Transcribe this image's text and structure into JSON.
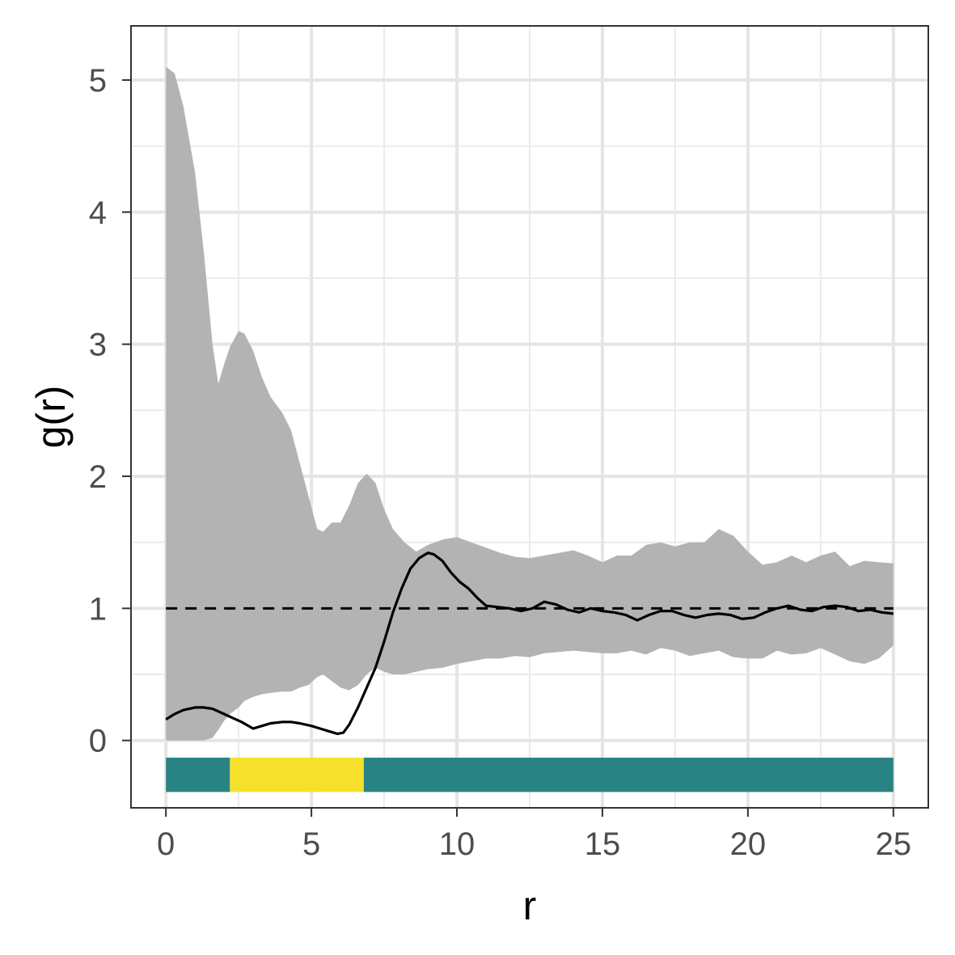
{
  "chart_data": {
    "type": "line",
    "title": "",
    "xlabel": "r",
    "ylabel": "g(r)",
    "xlim": [
      -1.2,
      26.2
    ],
    "ylim": [
      -0.51,
      5.41
    ],
    "x_ticks": [
      0,
      5,
      10,
      15,
      20,
      25
    ],
    "x_tick_labels": [
      "0",
      "5",
      "10",
      "15",
      "20",
      "25"
    ],
    "y_ticks": [
      0,
      1,
      2,
      3,
      4,
      5
    ],
    "y_tick_labels": [
      "0",
      "1",
      "2",
      "3",
      "4",
      "5"
    ],
    "grid": true,
    "legend": "none",
    "reference_line": {
      "y": 1,
      "style": "dashed",
      "color": "#000000"
    },
    "envelope": {
      "color": "#b3b3b3",
      "x": [
        0,
        0.3,
        0.6,
        1.0,
        1.3,
        1.6,
        1.8,
        2.0,
        2.2,
        2.5,
        2.7,
        3.0,
        3.3,
        3.6,
        4.0,
        4.3,
        4.6,
        4.9,
        5.2,
        5.4,
        5.7,
        6.0,
        6.3,
        6.6,
        6.9,
        7.2,
        7.5,
        7.8,
        8.2,
        8.6,
        9.0,
        9.5,
        10.0,
        10.5,
        11.0,
        11.5,
        12.0,
        12.5,
        13.0,
        13.5,
        14.0,
        14.5,
        15.0,
        15.5,
        16.0,
        16.5,
        17.0,
        17.5,
        18.0,
        18.5,
        19.0,
        19.5,
        20.0,
        20.5,
        21.0,
        21.5,
        22.0,
        22.5,
        23.0,
        23.5,
        24.0,
        24.5,
        25.0
      ],
      "upper": [
        5.1,
        5.05,
        4.8,
        4.3,
        3.7,
        3.0,
        2.7,
        2.85,
        2.98,
        3.1,
        3.08,
        2.95,
        2.75,
        2.6,
        2.48,
        2.35,
        2.1,
        1.85,
        1.6,
        1.58,
        1.65,
        1.65,
        1.78,
        1.95,
        2.02,
        1.95,
        1.75,
        1.6,
        1.5,
        1.43,
        1.48,
        1.52,
        1.54,
        1.5,
        1.46,
        1.42,
        1.39,
        1.38,
        1.4,
        1.42,
        1.44,
        1.4,
        1.35,
        1.4,
        1.4,
        1.48,
        1.5,
        1.47,
        1.5,
        1.5,
        1.6,
        1.55,
        1.43,
        1.33,
        1.35,
        1.4,
        1.35,
        1.4,
        1.43,
        1.32,
        1.36,
        1.35,
        1.34
      ],
      "lower": [
        0.0,
        0.0,
        0.0,
        0.0,
        0.0,
        0.02,
        0.08,
        0.15,
        0.2,
        0.25,
        0.3,
        0.33,
        0.35,
        0.36,
        0.37,
        0.37,
        0.4,
        0.42,
        0.48,
        0.5,
        0.45,
        0.4,
        0.38,
        0.42,
        0.5,
        0.55,
        0.52,
        0.5,
        0.5,
        0.52,
        0.54,
        0.55,
        0.58,
        0.6,
        0.62,
        0.62,
        0.64,
        0.63,
        0.66,
        0.67,
        0.68,
        0.67,
        0.66,
        0.66,
        0.68,
        0.65,
        0.7,
        0.68,
        0.64,
        0.66,
        0.68,
        0.63,
        0.62,
        0.62,
        0.68,
        0.65,
        0.66,
        0.7,
        0.65,
        0.6,
        0.58,
        0.62,
        0.72
      ]
    },
    "series": [
      {
        "color": "#000000",
        "x": [
          0,
          0.3,
          0.6,
          1.0,
          1.3,
          1.6,
          2.0,
          2.3,
          2.6,
          3.0,
          3.3,
          3.6,
          4.0,
          4.3,
          4.6,
          5.0,
          5.3,
          5.6,
          5.9,
          6.1,
          6.3,
          6.6,
          6.9,
          7.2,
          7.5,
          7.8,
          8.1,
          8.4,
          8.7,
          9.0,
          9.2,
          9.5,
          9.8,
          10.1,
          10.4,
          10.7,
          11.0,
          11.4,
          11.8,
          12.2,
          12.6,
          13.0,
          13.4,
          13.8,
          14.2,
          14.6,
          15.0,
          15.4,
          15.8,
          16.2,
          16.6,
          17.0,
          17.4,
          17.8,
          18.2,
          18.6,
          19.0,
          19.4,
          19.8,
          20.2,
          20.6,
          21.0,
          21.4,
          21.8,
          22.2,
          22.6,
          23.0,
          23.4,
          23.8,
          24.2,
          24.6,
          25.0
        ],
        "y": [
          0.16,
          0.2,
          0.23,
          0.25,
          0.25,
          0.24,
          0.2,
          0.17,
          0.14,
          0.09,
          0.11,
          0.13,
          0.14,
          0.14,
          0.13,
          0.11,
          0.09,
          0.07,
          0.05,
          0.06,
          0.12,
          0.25,
          0.4,
          0.55,
          0.75,
          0.97,
          1.15,
          1.3,
          1.38,
          1.42,
          1.41,
          1.36,
          1.27,
          1.2,
          1.15,
          1.08,
          1.02,
          1.01,
          1.0,
          0.98,
          1.0,
          1.05,
          1.03,
          0.99,
          0.97,
          1.0,
          0.98,
          0.97,
          0.95,
          0.91,
          0.95,
          0.98,
          0.98,
          0.95,
          0.93,
          0.95,
          0.96,
          0.95,
          0.92,
          0.93,
          0.97,
          1.0,
          1.02,
          0.99,
          0.98,
          1.01,
          1.02,
          1.01,
          0.98,
          0.99,
          0.97,
          0.96
        ]
      }
    ],
    "strip": {
      "y_range": [
        -0.39,
        -0.13
      ],
      "segments": [
        {
          "x0": 0,
          "x1": 2.2,
          "color": "#2a8383"
        },
        {
          "x0": 2.2,
          "x1": 6.8,
          "color": "#f5e12c"
        },
        {
          "x0": 6.8,
          "x1": 25,
          "color": "#2a8383"
        }
      ]
    }
  }
}
